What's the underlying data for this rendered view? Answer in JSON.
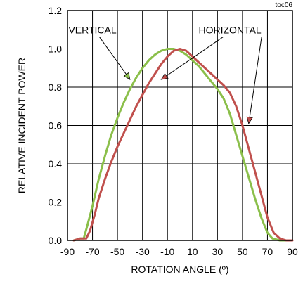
{
  "chart_data": {
    "type": "line",
    "tag": "toc06",
    "xlabel": "ROTATION ANGLE (º)",
    "ylabel": "RELATIVE  INCIDENT POWER",
    "xlim": [
      -90,
      90
    ],
    "ylim": [
      0,
      1.2
    ],
    "grid": true,
    "x_ticks": [
      -90,
      -70,
      -50,
      -30,
      -10,
      10,
      30,
      50,
      70,
      90
    ],
    "x_tick_labels": [
      "-90",
      "-70",
      "-50",
      "-30",
      "-10",
      "10",
      "30",
      "50",
      "70",
      "90"
    ],
    "y_ticks": [
      0,
      0.2,
      0.4,
      0.6,
      0.8,
      1.0,
      1.2
    ],
    "y_tick_labels": [
      "0.0",
      "0.2",
      "0.4",
      "0.6",
      "0.8",
      "1.0",
      "1.2"
    ],
    "series": [
      {
        "name": "VERTICAL",
        "color": "#8bbf4a",
        "points": [
          [
            -85,
            0.0
          ],
          [
            -80,
            0.01
          ],
          [
            -77,
            0.01
          ],
          [
            -74,
            0.08
          ],
          [
            -70,
            0.18
          ],
          [
            -65,
            0.32
          ],
          [
            -60,
            0.44
          ],
          [
            -55,
            0.55
          ],
          [
            -50,
            0.64
          ],
          [
            -45,
            0.72
          ],
          [
            -40,
            0.79
          ],
          [
            -35,
            0.85
          ],
          [
            -30,
            0.9
          ],
          [
            -25,
            0.94
          ],
          [
            -20,
            0.97
          ],
          [
            -15,
            0.99
          ],
          [
            -10,
            1.0
          ],
          [
            -5,
            1.0
          ],
          [
            0,
            0.99
          ],
          [
            5,
            0.97
          ],
          [
            10,
            0.94
          ],
          [
            15,
            0.91
          ],
          [
            20,
            0.87
          ],
          [
            25,
            0.83
          ],
          [
            30,
            0.79
          ],
          [
            35,
            0.74
          ],
          [
            40,
            0.66
          ],
          [
            45,
            0.55
          ],
          [
            50,
            0.44
          ],
          [
            55,
            0.33
          ],
          [
            60,
            0.22
          ],
          [
            65,
            0.12
          ],
          [
            70,
            0.04
          ],
          [
            74,
            0.01
          ],
          [
            80,
            0.0
          ],
          [
            85,
            0.0
          ]
        ]
      },
      {
        "name": "HORIZONTAL",
        "color": "#c0504d",
        "points": [
          [
            -85,
            0.0
          ],
          [
            -80,
            0.01
          ],
          [
            -75,
            0.01
          ],
          [
            -72,
            0.05
          ],
          [
            -68,
            0.14
          ],
          [
            -65,
            0.22
          ],
          [
            -60,
            0.32
          ],
          [
            -55,
            0.41
          ],
          [
            -50,
            0.49
          ],
          [
            -45,
            0.56
          ],
          [
            -40,
            0.63
          ],
          [
            -35,
            0.7
          ],
          [
            -30,
            0.76
          ],
          [
            -25,
            0.82
          ],
          [
            -20,
            0.87
          ],
          [
            -15,
            0.92
          ],
          [
            -10,
            0.96
          ],
          [
            -5,
            0.99
          ],
          [
            0,
            1.0
          ],
          [
            5,
            0.99
          ],
          [
            10,
            0.96
          ],
          [
            15,
            0.93
          ],
          [
            20,
            0.9
          ],
          [
            25,
            0.87
          ],
          [
            30,
            0.84
          ],
          [
            35,
            0.81
          ],
          [
            40,
            0.77
          ],
          [
            45,
            0.7
          ],
          [
            50,
            0.6
          ],
          [
            55,
            0.48
          ],
          [
            60,
            0.36
          ],
          [
            65,
            0.24
          ],
          [
            70,
            0.12
          ],
          [
            75,
            0.04
          ],
          [
            80,
            0.01
          ],
          [
            85,
            0.0
          ],
          [
            90,
            0.0
          ]
        ]
      }
    ],
    "annotations": [
      {
        "text": "VERTICAL",
        "series": "VERTICAL",
        "label_at": [
          -70,
          1.08
        ],
        "arrow_to": [
          -40,
          0.84
        ]
      },
      {
        "text": "HORIZONTAL",
        "series": "HORIZONTAL",
        "label_at": [
          40,
          1.08
        ],
        "arrow_to": [
          -15,
          0.84
        ],
        "arrow2_to": [
          55,
          0.61
        ]
      }
    ]
  }
}
